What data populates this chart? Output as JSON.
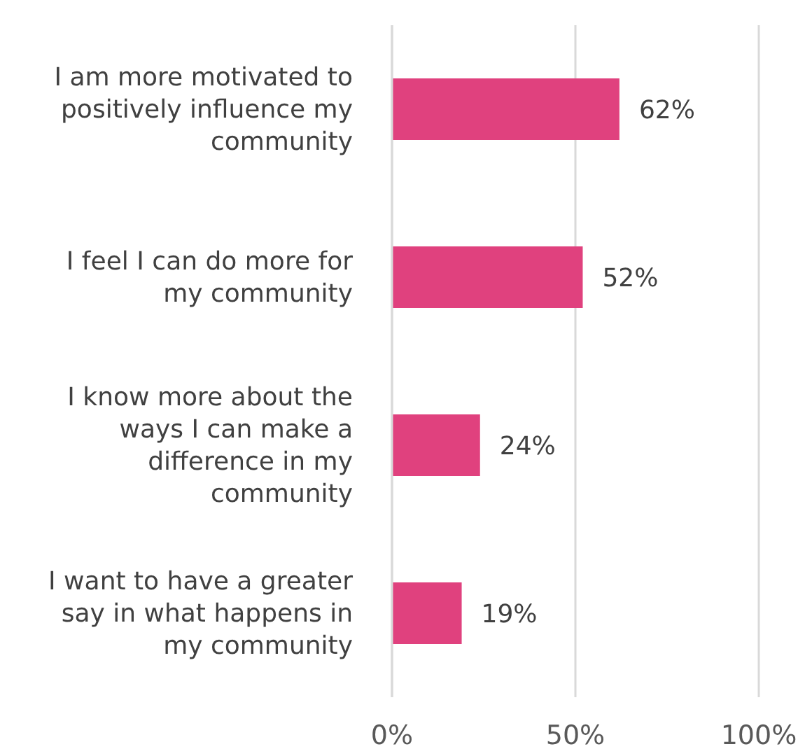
{
  "chart_data": {
    "type": "bar",
    "orientation": "horizontal",
    "categories": [
      "I am more motivated to positively influence my community",
      "I feel I can do more for my community",
      "I know more about the ways I can make a difference in my community",
      "I want to have a greater say in what happens in my community"
    ],
    "values": [
      62,
      52,
      24,
      19
    ],
    "color": "#e0417e",
    "value_labels": [
      "62%",
      "52%",
      "24%",
      "19%"
    ],
    "xlim": [
      0,
      100
    ],
    "xticks": [
      {
        "value": 0,
        "label": "0%"
      },
      {
        "value": 50,
        "label": "50%"
      },
      {
        "value": 100,
        "label": "100%"
      }
    ],
    "grid": "x"
  }
}
